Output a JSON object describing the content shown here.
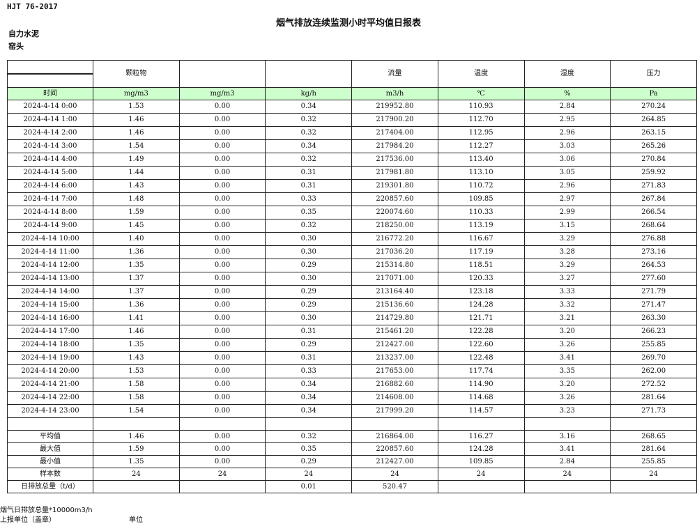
{
  "header": {
    "standard": "HJT  76-2017",
    "title": "烟气排放连续监测小时平均值日报表",
    "company": "自力水泥",
    "location": "窑头"
  },
  "table": {
    "param_headers": [
      "颗粒物",
      "",
      "",
      "流量",
      "温度",
      "湿度",
      "压力"
    ],
    "time_label": "时间",
    "units": [
      "mg/m3",
      "mg/m3",
      "kg/h",
      "m3/h",
      "℃",
      "%",
      "Pa"
    ],
    "unit_color": "#ccffcc",
    "rows": [
      [
        "2024-4-14 0:00",
        "1.53",
        "0.00",
        "0.34",
        "219952.80",
        "110.93",
        "2.84",
        "270.24"
      ],
      [
        "2024-4-14 1:00",
        "1.46",
        "0.00",
        "0.32",
        "217900.20",
        "112.70",
        "2.95",
        "264.85"
      ],
      [
        "2024-4-14 2:00",
        "1.46",
        "0.00",
        "0.32",
        "217404.00",
        "112.95",
        "2.96",
        "263.15"
      ],
      [
        "2024-4-14 3:00",
        "1.54",
        "0.00",
        "0.34",
        "217984.20",
        "112.27",
        "3.03",
        "265.26"
      ],
      [
        "2024-4-14 4:00",
        "1.49",
        "0.00",
        "0.32",
        "217536.00",
        "113.40",
        "3.06",
        "270.84"
      ],
      [
        "2024-4-14 5:00",
        "1.44",
        "0.00",
        "0.31",
        "217981.80",
        "113.10",
        "3.05",
        "259.92"
      ],
      [
        "2024-4-14 6:00",
        "1.43",
        "0.00",
        "0.31",
        "219301.80",
        "110.72",
        "2.96",
        "271.83"
      ],
      [
        "2024-4-14 7:00",
        "1.48",
        "0.00",
        "0.33",
        "220857.60",
        "109.85",
        "2.97",
        "267.84"
      ],
      [
        "2024-4-14 8:00",
        "1.59",
        "0.00",
        "0.35",
        "220074.60",
        "110.33",
        "2.99",
        "266.54"
      ],
      [
        "2024-4-14 9:00",
        "1.45",
        "0.00",
        "0.32",
        "218250.00",
        "113.19",
        "3.15",
        "268.64"
      ],
      [
        "2024-4-14 10:00",
        "1.40",
        "0.00",
        "0.30",
        "216772.20",
        "116.67",
        "3.29",
        "276.88"
      ],
      [
        "2024-4-14 11:00",
        "1.36",
        "0.00",
        "0.30",
        "217036.20",
        "117.19",
        "3.28",
        "273.16"
      ],
      [
        "2024-4-14 12:00",
        "1.35",
        "0.00",
        "0.29",
        "215314.80",
        "118.51",
        "3.29",
        "264.53"
      ],
      [
        "2024-4-14 13:00",
        "1.37",
        "0.00",
        "0.30",
        "217071.00",
        "120.33",
        "3.27",
        "277.60"
      ],
      [
        "2024-4-14 14:00",
        "1.37",
        "0.00",
        "0.29",
        "213164.40",
        "123.18",
        "3.33",
        "271.79"
      ],
      [
        "2024-4-14 15:00",
        "1.36",
        "0.00",
        "0.29",
        "215136.60",
        "124.28",
        "3.32",
        "271.47"
      ],
      [
        "2024-4-14 16:00",
        "1.41",
        "0.00",
        "0.30",
        "214729.80",
        "121.71",
        "3.21",
        "263.30"
      ],
      [
        "2024-4-14 17:00",
        "1.46",
        "0.00",
        "0.31",
        "215461.20",
        "122.28",
        "3.20",
        "266.23"
      ],
      [
        "2024-4-14 18:00",
        "1.35",
        "0.00",
        "0.29",
        "212427.00",
        "122.60",
        "3.26",
        "255.85"
      ],
      [
        "2024-4-14 19:00",
        "1.43",
        "0.00",
        "0.31",
        "213237.00",
        "122.48",
        "3.41",
        "269.70"
      ],
      [
        "2024-4-14 20:00",
        "1.53",
        "0.00",
        "0.33",
        "217653.00",
        "117.74",
        "3.35",
        "262.00"
      ],
      [
        "2024-4-14 21:00",
        "1.58",
        "0.00",
        "0.34",
        "216882.60",
        "114.90",
        "3.20",
        "272.52"
      ],
      [
        "2024-4-14 22:00",
        "1.58",
        "0.00",
        "0.34",
        "214608.00",
        "114.68",
        "3.26",
        "281.64"
      ],
      [
        "2024-4-14 23:00",
        "1.54",
        "0.00",
        "0.34",
        "217999.20",
        "114.57",
        "3.23",
        "271.73"
      ]
    ],
    "summary": [
      [
        "平均值",
        "1.46",
        "0.00",
        "0.32",
        "216864.00",
        "116.27",
        "3.16",
        "268.65"
      ],
      [
        "最大值",
        "1.59",
        "0.00",
        "0.35",
        "220857.60",
        "124.28",
        "3.41",
        "281.64"
      ],
      [
        "最小值",
        "1.35",
        "0.00",
        "0.29",
        "212427.00",
        "109.85",
        "2.84",
        "255.85"
      ],
      [
        "样本数",
        "24",
        "24",
        "24",
        "24",
        "24",
        "24",
        "24"
      ],
      [
        "日排放总量（t/d）",
        "",
        "",
        "0.01",
        "520.47",
        "",
        "",
        ""
      ]
    ]
  },
  "footer": {
    "note": "烟气日排放总量*10000m3/h",
    "reporter_label": "上报单位（盖章）",
    "unit_label": "单位"
  }
}
